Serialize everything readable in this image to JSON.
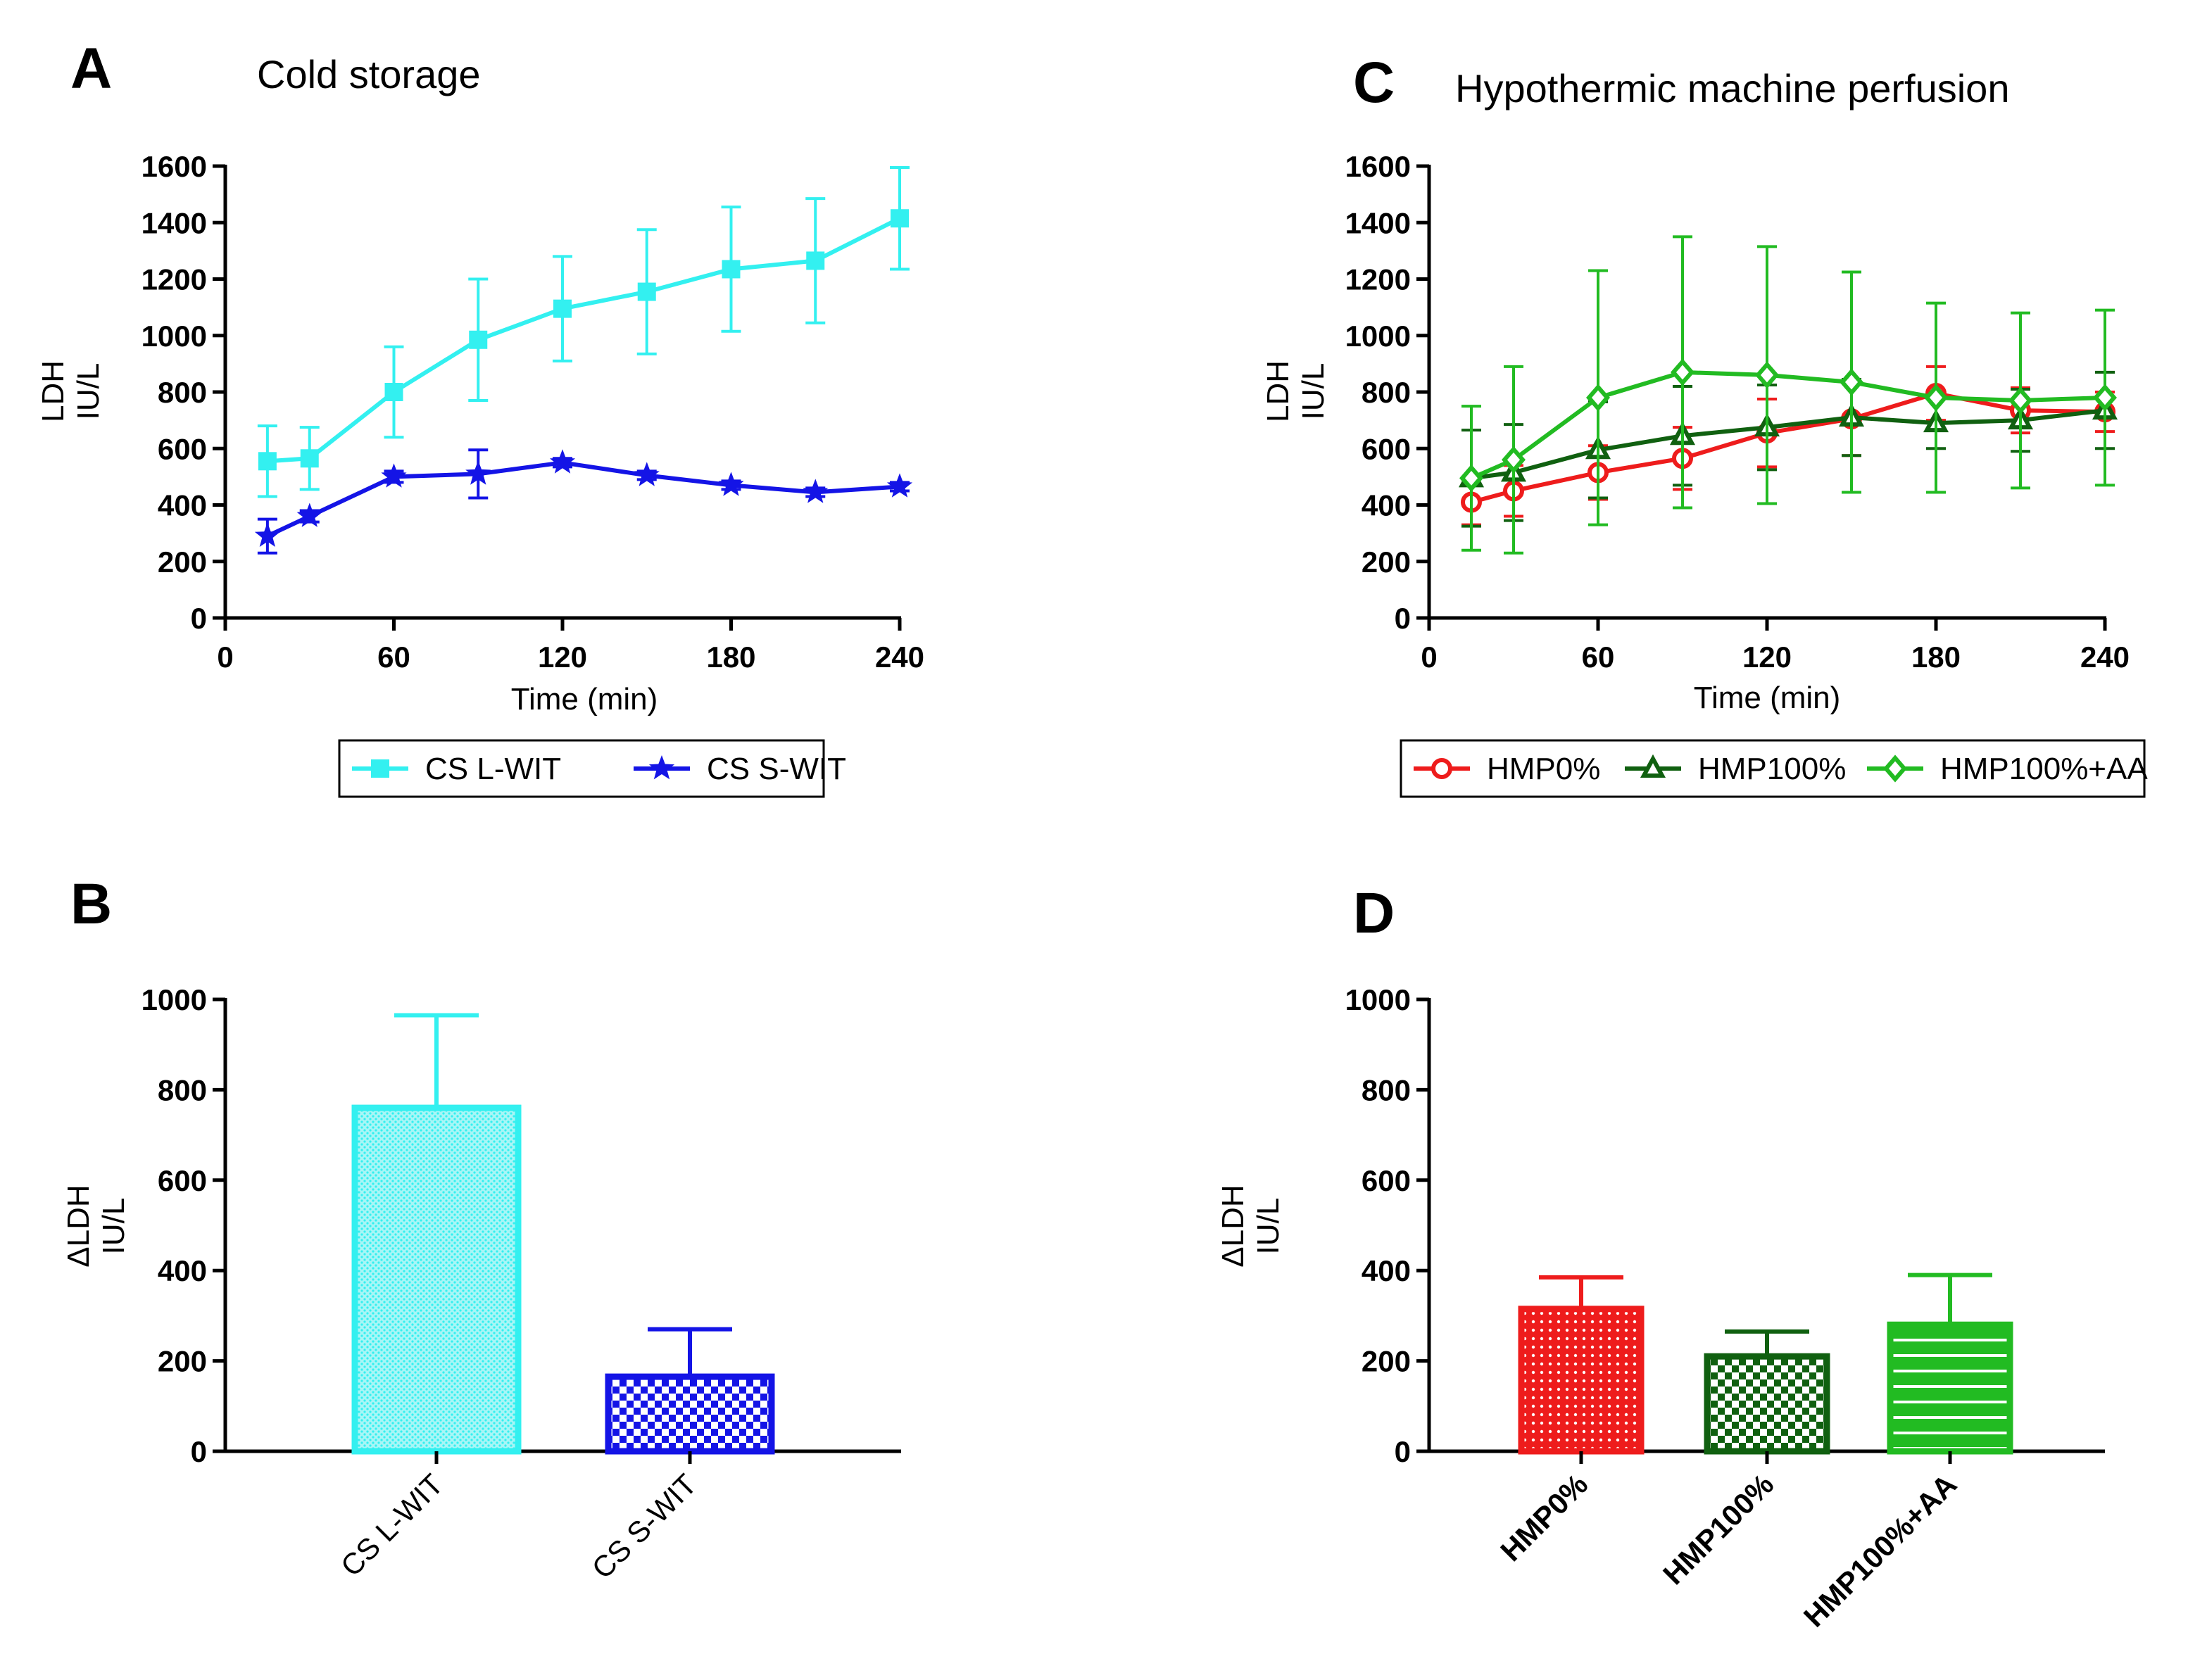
{
  "panels": [
    {
      "letter": "A",
      "title": "Cold storage",
      "xlabel": "Time (min)",
      "ylabel_line1": "LDH",
      "ylabel_line2": "IU/L"
    },
    {
      "letter": "B",
      "title": "",
      "xlabel": "",
      "ylabel_line1": "ΔLDH",
      "ylabel_line2": "IU/L"
    },
    {
      "letter": "C",
      "title": "Hypothermic machine perfusion",
      "xlabel": "Time (min)",
      "ylabel_line1": "LDH",
      "ylabel_line2": "IU/L"
    },
    {
      "letter": "D",
      "title": "",
      "xlabel": "",
      "ylabel_line1": "ΔLDH",
      "ylabel_line2": "IU/L"
    }
  ],
  "chart_data": [
    {
      "panel": "A",
      "type": "line",
      "title": "Cold storage",
      "xlabel": "Time (min)",
      "ylabel": "LDH IU/L",
      "xlim": [
        0,
        240
      ],
      "ylim": [
        0,
        1600
      ],
      "xticks": [
        0,
        60,
        120,
        180,
        240
      ],
      "yticks": [
        0,
        200,
        400,
        600,
        800,
        1000,
        1200,
        1400,
        1600
      ],
      "x": [
        15,
        30,
        60,
        90,
        120,
        150,
        180,
        210,
        240
      ],
      "series": [
        {
          "name": "CS L-WIT",
          "color": "#33F0F0",
          "marker": "square",
          "values": [
            555,
            565,
            800,
            985,
            1095,
            1155,
            1235,
            1265,
            1415
          ],
          "errors": [
            125,
            110,
            160,
            215,
            185,
            220,
            220,
            220,
            180
          ]
        },
        {
          "name": "CS S-WIT",
          "color": "#1414E6",
          "marker": "star",
          "values": [
            290,
            360,
            500,
            510,
            550,
            505,
            470,
            445,
            465
          ],
          "errors": [
            60,
            20,
            20,
            85,
            15,
            15,
            15,
            15,
            15
          ]
        }
      ],
      "legend": "bottom"
    },
    {
      "panel": "B",
      "type": "bar",
      "ylabel": "ΔLDH IU/L",
      "ylim": [
        0,
        1000
      ],
      "yticks": [
        0,
        200,
        400,
        600,
        800,
        1000
      ],
      "categories": [
        "CS L-WIT",
        "CS S-WIT"
      ],
      "values": [
        760,
        165
      ],
      "errors": [
        205,
        105
      ],
      "colors": [
        "#33F0F0",
        "#1414E6"
      ],
      "patterns": [
        "fine-dots",
        "checker"
      ]
    },
    {
      "panel": "C",
      "type": "line",
      "title": "Hypothermic machine perfusion",
      "xlabel": "Time (min)",
      "ylabel": "LDH IU/L",
      "xlim": [
        0,
        240
      ],
      "ylim": [
        0,
        1600
      ],
      "xticks": [
        0,
        60,
        120,
        180,
        240
      ],
      "yticks": [
        0,
        200,
        400,
        600,
        800,
        1000,
        1200,
        1400,
        1600
      ],
      "x": [
        15,
        30,
        60,
        90,
        120,
        150,
        180,
        210,
        240
      ],
      "series": [
        {
          "name": "HMP0%",
          "color": "#EE1C1C",
          "marker": "circle",
          "values": [
            410,
            450,
            515,
            565,
            655,
            705,
            795,
            735,
            730
          ],
          "errors": [
            80,
            90,
            95,
            110,
            120,
            130,
            95,
            80,
            70
          ]
        },
        {
          "name": "HMP100%",
          "color": "#106010",
          "marker": "triangle",
          "values": [
            495,
            515,
            595,
            645,
            675,
            710,
            690,
            700,
            735
          ],
          "errors": [
            170,
            170,
            170,
            175,
            150,
            135,
            90,
            110,
            135
          ]
        },
        {
          "name": "HMP100%+AA",
          "color": "#22BB22",
          "marker": "diamond",
          "values": [
            495,
            560,
            780,
            870,
            860,
            835,
            780,
            770,
            780
          ],
          "errors": [
            255,
            330,
            450,
            480,
            455,
            390,
            335,
            310,
            310
          ]
        }
      ],
      "legend": "bottom"
    },
    {
      "panel": "D",
      "type": "bar",
      "ylabel": "ΔLDH IU/L",
      "ylim": [
        0,
        1000
      ],
      "yticks": [
        0,
        200,
        400,
        600,
        800,
        1000
      ],
      "categories": [
        "HMP0%",
        "HMP100%",
        "HMP100%+AA"
      ],
      "values": [
        315,
        210,
        280
      ],
      "errors": [
        70,
        55,
        110
      ],
      "colors": [
        "#EE1C1C",
        "#106010",
        "#22BB22"
      ],
      "patterns": [
        "dots",
        "checker",
        "h-lines"
      ]
    }
  ]
}
